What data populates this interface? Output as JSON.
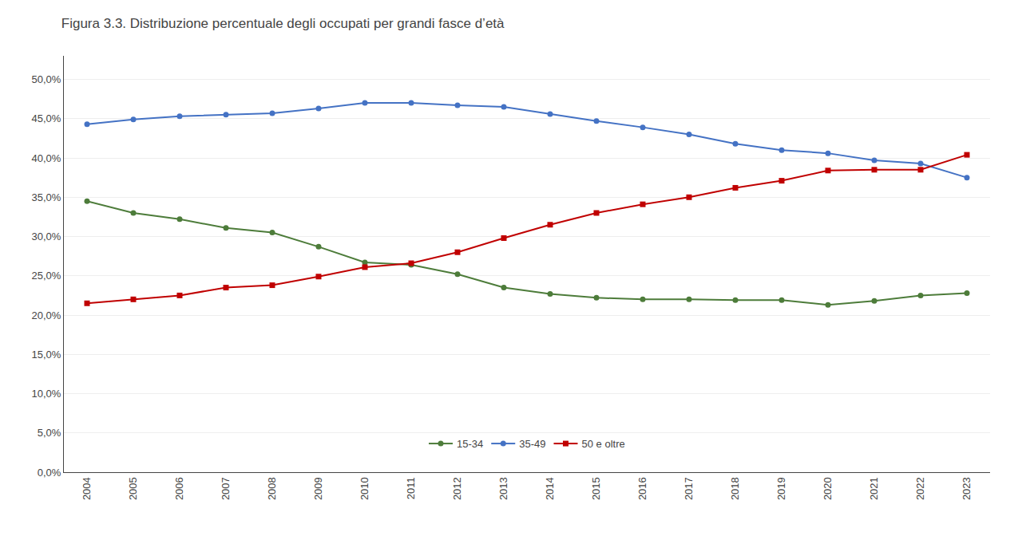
{
  "chart_data": {
    "type": "line",
    "title": "Figura 3.3. Distribuzione percentuale degli occupati per grandi fasce d’età",
    "x": [
      2004,
      2005,
      2006,
      2007,
      2008,
      2009,
      2010,
      2011,
      2012,
      2013,
      2014,
      2015,
      2016,
      2017,
      2018,
      2019,
      2020,
      2021,
      2022,
      2023
    ],
    "series": [
      {
        "name": "15-34",
        "color": "#4d7c3a",
        "marker": "circle",
        "values": [
          34.5,
          33.0,
          32.2,
          31.1,
          30.5,
          28.7,
          26.7,
          26.4,
          25.2,
          23.5,
          22.7,
          22.2,
          22.0,
          22.0,
          21.9,
          21.9,
          21.3,
          21.8,
          22.5,
          22.8
        ]
      },
      {
        "name": "35-49",
        "color": "#4472c4",
        "marker": "circle",
        "values": [
          44.3,
          44.9,
          45.3,
          45.5,
          45.7,
          46.3,
          47.0,
          47.0,
          46.7,
          46.5,
          45.6,
          44.7,
          43.9,
          43.0,
          41.8,
          41.0,
          40.6,
          39.7,
          39.3,
          37.5
        ]
      },
      {
        "name": "50 e oltre",
        "color": "#c00000",
        "marker": "square",
        "values": [
          21.5,
          22.0,
          22.5,
          23.5,
          23.8,
          24.9,
          26.1,
          26.6,
          28.0,
          29.8,
          31.5,
          33.0,
          34.1,
          35.0,
          36.2,
          37.1,
          38.4,
          38.5,
          38.5,
          40.4
        ]
      }
    ],
    "xlim": [
      2003.5,
      2023.5
    ],
    "xticks": [
      2004,
      2005,
      2006,
      2007,
      2008,
      2009,
      2010,
      2011,
      2012,
      2013,
      2014,
      2015,
      2016,
      2017,
      2018,
      2019,
      2020,
      2021,
      2022,
      2023
    ],
    "ylim": [
      0.0,
      53.0
    ],
    "yticks": [
      {
        "value": 0.0,
        "label": "0,0%"
      },
      {
        "value": 5.0,
        "label": "5,0%"
      },
      {
        "value": 10.0,
        "label": "10,0%"
      },
      {
        "value": 15.0,
        "label": "15,0%"
      },
      {
        "value": 20.0,
        "label": "20,0%"
      },
      {
        "value": 25.0,
        "label": "25,0%"
      },
      {
        "value": 30.0,
        "label": "30,0%"
      },
      {
        "value": 35.0,
        "label": "35,0%"
      },
      {
        "value": 40.0,
        "label": "40,0%"
      },
      {
        "value": 45.0,
        "label": "45,0%"
      },
      {
        "value": 50.0,
        "label": "50,0%"
      }
    ],
    "grid": "y",
    "legend": "lower center"
  }
}
